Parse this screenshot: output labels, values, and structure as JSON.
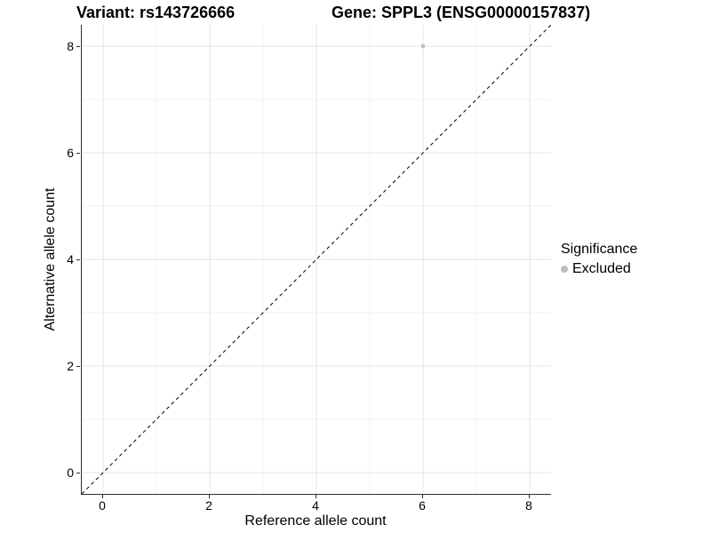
{
  "chart_data": {
    "type": "scatter",
    "titles": {
      "variant": "Variant: rs143726666",
      "gene": "Gene: SPPL3 (ENSG00000157837)"
    },
    "xlabel": "Reference allele count",
    "ylabel": "Alternative allele count",
    "xlim": [
      -0.4,
      8.4
    ],
    "ylim": [
      -0.4,
      8.4
    ],
    "x_ticks": [
      0,
      2,
      4,
      6,
      8
    ],
    "y_ticks": [
      0,
      2,
      4,
      6,
      8
    ],
    "x_minor_ticks": [
      1,
      3,
      5,
      7
    ],
    "y_minor_ticks": [
      1,
      3,
      5,
      7
    ],
    "grid": true,
    "legend_position": "right",
    "reference_line": {
      "type": "identity",
      "slope": 1,
      "intercept": 0,
      "style": "dashed",
      "color": "#000000"
    },
    "series": [
      {
        "name": "Excluded",
        "color": "#bebebe",
        "points": [
          {
            "x": 6,
            "y": 8
          }
        ]
      }
    ],
    "legend": {
      "title": "Significance",
      "items": [
        {
          "label": "Excluded",
          "color": "#bebebe"
        }
      ]
    },
    "colors": {
      "grid_major": "#e4e4e4",
      "grid_minor": "#f2f2f2",
      "axis_line": "#2f2f2f",
      "tick_mark": "#2f2f2f",
      "text": "#000000",
      "background": "#ffffff"
    }
  }
}
